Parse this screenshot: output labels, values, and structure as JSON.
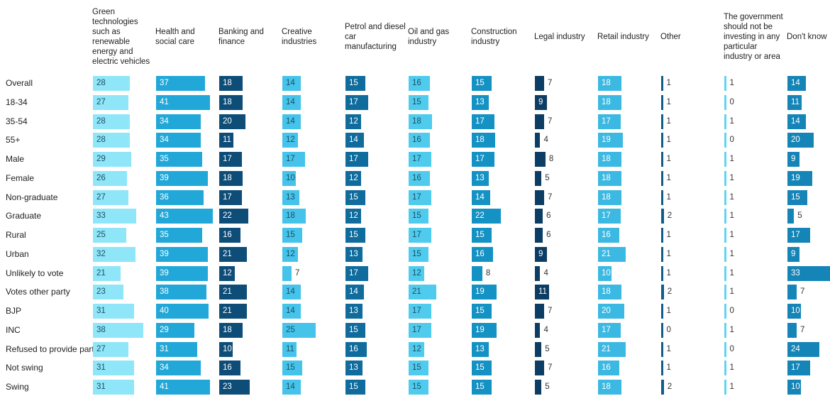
{
  "chart_data": {
    "type": "bar",
    "categories": [
      "Overall",
      "18-34",
      "35-54",
      "55+",
      "Male",
      "Female",
      "Non-graduate",
      "Graduate",
      "Rural",
      "Urban",
      "Unlikely to vote",
      "Votes other party",
      "BJP",
      "INC",
      "Refused to provide party",
      "Not swing",
      "Swing"
    ],
    "series": [
      {
        "name": "Green technologies such as renewable energy and electric vehicles",
        "color": "#8fe6f8",
        "values": [
          28,
          27,
          28,
          28,
          29,
          26,
          27,
          33,
          25,
          32,
          21,
          23,
          31,
          38,
          27,
          31,
          31
        ]
      },
      {
        "name": "Health and social care",
        "color": "#22a8d8",
        "values": [
          37,
          41,
          34,
          34,
          35,
          39,
          36,
          43,
          35,
          39,
          39,
          38,
          40,
          29,
          31,
          34,
          41
        ]
      },
      {
        "name": "Banking and finance",
        "color": "#0d4d78",
        "values": [
          18,
          18,
          20,
          11,
          17,
          18,
          17,
          22,
          16,
          21,
          12,
          21,
          21,
          18,
          10,
          16,
          23
        ]
      },
      {
        "name": "Creative industries",
        "color": "#45c3ea",
        "values": [
          14,
          14,
          14,
          12,
          17,
          10,
          13,
          18,
          15,
          12,
          7,
          14,
          14,
          25,
          11,
          15,
          14
        ]
      },
      {
        "name": "Petrol and diesel car manufacturing",
        "color": "#0f6c9c",
        "values": [
          15,
          17,
          12,
          14,
          17,
          12,
          15,
          12,
          15,
          13,
          17,
          14,
          13,
          15,
          16,
          13,
          15
        ]
      },
      {
        "name": "Oil and gas industry",
        "color": "#4fcbee",
        "values": [
          16,
          15,
          18,
          16,
          17,
          16,
          17,
          15,
          17,
          15,
          12,
          21,
          17,
          17,
          12,
          15,
          15
        ]
      },
      {
        "name": "Construction industry",
        "color": "#1592c4",
        "values": [
          15,
          13,
          17,
          18,
          17,
          13,
          14,
          22,
          15,
          16,
          8,
          19,
          15,
          19,
          13,
          15,
          15
        ]
      },
      {
        "name": "Legal industry",
        "color": "#0c3d64",
        "values": [
          7,
          9,
          7,
          4,
          8,
          5,
          7,
          6,
          6,
          9,
          4,
          11,
          7,
          4,
          5,
          7,
          5
        ]
      },
      {
        "name": "Retail industry",
        "color": "#3cb9e2",
        "values": [
          18,
          18,
          17,
          19,
          18,
          18,
          18,
          17,
          16,
          21,
          10,
          18,
          20,
          17,
          21,
          16,
          18
        ]
      },
      {
        "name": "Other",
        "color": "#0f5d8c",
        "values": [
          1,
          1,
          1,
          1,
          1,
          1,
          1,
          2,
          1,
          1,
          1,
          2,
          1,
          0,
          1,
          1,
          2
        ]
      },
      {
        "name": "The government should not be investing in any particular industry or area",
        "color": "#62d4f0",
        "values": [
          1,
          0,
          1,
          0,
          1,
          1,
          1,
          1,
          1,
          1,
          1,
          1,
          0,
          1,
          0,
          1,
          1
        ]
      },
      {
        "name": "Don't know",
        "color": "#1584b6",
        "values": [
          14,
          11,
          14,
          20,
          9,
          19,
          15,
          5,
          17,
          9,
          33,
          7,
          10,
          7,
          24,
          17,
          10
        ]
      }
    ]
  }
}
